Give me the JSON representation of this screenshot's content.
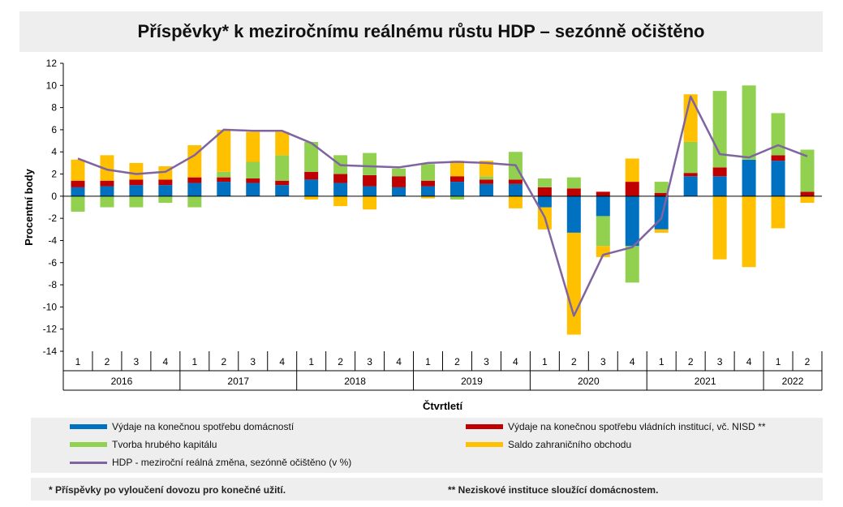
{
  "chart_data": {
    "type": "bar",
    "title": "Příspěvky* k meziročnímu reálnému růstu HDP – sezónně očištěno",
    "xlabel": "Čtvrtletí",
    "ylabel": "Procentní body",
    "ylim": [
      -14,
      12
    ],
    "yticks": [
      -14,
      -12,
      -10,
      -8,
      -6,
      -4,
      -2,
      0,
      2,
      4,
      6,
      8,
      10,
      12
    ],
    "stacked": true,
    "grid": false,
    "legend_position": "bottom",
    "categories": [
      "1",
      "2",
      "3",
      "4",
      "1",
      "2",
      "3",
      "4",
      "1",
      "2",
      "3",
      "4",
      "1",
      "2",
      "3",
      "4",
      "1",
      "2",
      "3",
      "4",
      "1",
      "2",
      "3",
      "4",
      "1",
      "2"
    ],
    "years": [
      {
        "label": "2016",
        "span": 4
      },
      {
        "label": "2017",
        "span": 4
      },
      {
        "label": "2018",
        "span": 4
      },
      {
        "label": "2019",
        "span": 4
      },
      {
        "label": "2020",
        "span": 4
      },
      {
        "label": "2021",
        "span": 4
      },
      {
        "label": "2022",
        "span": 2
      }
    ],
    "series": [
      {
        "name": "Výdaje na konečnou spotřebu domácností",
        "color": "#0070c0",
        "values": [
          0.8,
          0.9,
          1.0,
          1.0,
          1.2,
          1.3,
          1.2,
          1.0,
          1.5,
          1.2,
          0.9,
          0.8,
          0.9,
          1.3,
          1.1,
          1.1,
          -1.0,
          -3.3,
          -1.8,
          -4.5,
          -3.0,
          1.8,
          1.8,
          3.3,
          3.2,
          0.0
        ]
      },
      {
        "name": "Výdaje na konečnou spotřebu vládních institucí, vč. NISD **",
        "color": "#c00000",
        "values": [
          0.6,
          0.5,
          0.5,
          0.5,
          0.5,
          0.4,
          0.4,
          0.4,
          0.7,
          0.8,
          1.0,
          1.0,
          0.5,
          0.5,
          0.4,
          0.4,
          0.8,
          0.7,
          0.4,
          1.3,
          0.3,
          0.3,
          0.8,
          0.0,
          0.5,
          0.4
        ]
      },
      {
        "name": "Tvorba hrubého kapitálu",
        "color": "#92d050",
        "values": [
          -1.4,
          -1.0,
          -1.0,
          -0.6,
          -1.0,
          0.5,
          1.5,
          2.3,
          2.7,
          1.7,
          2.0,
          0.7,
          1.5,
          -0.3,
          0.3,
          2.5,
          0.8,
          1.0,
          -2.7,
          -3.3,
          1.0,
          2.8,
          6.9,
          6.7,
          3.8,
          3.8
        ]
      },
      {
        "name": "Saldo zahraničního obchodu",
        "color": "#ffc000",
        "values": [
          1.9,
          2.3,
          1.5,
          1.2,
          2.9,
          3.8,
          2.7,
          2.1,
          -0.3,
          -0.9,
          -1.2,
          0.0,
          -0.2,
          1.4,
          1.4,
          -1.1,
          -2.0,
          -9.2,
          -1.0,
          2.1,
          -0.3,
          4.3,
          -5.7,
          -6.4,
          -2.9,
          -0.6
        ]
      }
    ],
    "line": {
      "name": "HDP - meziroční reálná změna, sezónně očištěno (v %)",
      "color": "#8064a2",
      "values": [
        3.4,
        2.4,
        2.0,
        2.2,
        3.7,
        6.0,
        5.9,
        5.9,
        4.8,
        2.8,
        2.7,
        2.6,
        3.0,
        3.1,
        3.0,
        2.8,
        -1.9,
        -10.8,
        -5.3,
        -4.6,
        -2.0,
        9.0,
        3.8,
        3.5,
        4.6,
        3.6
      ]
    }
  },
  "footnotes": {
    "left": "* Příspěvky po vyloučení dovozu pro konečné užití.",
    "right": "** Neziskové instituce sloužící domácnostem."
  }
}
